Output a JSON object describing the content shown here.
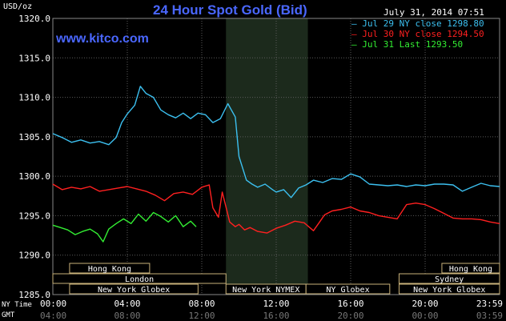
{
  "header": {
    "y_unit": "USD/oz",
    "title": "24 Hour Spot Gold (Bid)",
    "date": "July 31, 2014 07:51",
    "site": "www.kitco.com"
  },
  "timezones": {
    "ny_label": "NY Time",
    "gmt_label": "GMT"
  },
  "colors": {
    "jul29": "#3cc0f0",
    "jul30": "#ff2020",
    "jul31": "#33ee33",
    "grid": "#5a5a5a",
    "session_bg": "#1c2a1c",
    "label_border": "#c9b27a"
  },
  "chart_data": {
    "type": "line",
    "title": "24 Hour Spot Gold (Bid)",
    "ylabel": "USD/oz",
    "ylim": [
      1285.0,
      1320.0
    ],
    "yticks": [
      "1285.0",
      "1290.0",
      "1295.0",
      "1300.0",
      "1305.0",
      "1310.0",
      "1315.0",
      "1320.0"
    ],
    "xlim_hours": [
      0,
      24
    ],
    "xticks_ny": [
      "00:00",
      "04:00",
      "08:00",
      "12:00",
      "16:00",
      "20:00",
      "23:59"
    ],
    "xticks_gmt": [
      "04:00",
      "08:00",
      "12:00",
      "16:00",
      "20:00",
      "00:00",
      "03:59"
    ],
    "highlight_hours": [
      9.3,
      13.7
    ],
    "legend_position": "top-right",
    "legend": [
      "Jul 29 NY close 1298.80",
      "Jul 30 NY close 1294.50",
      "Jul 31 Last 1293.50"
    ],
    "series": [
      {
        "name": "Jul 29 NY close 1298.80",
        "color": "#3cc0f0",
        "x": [
          0,
          0.5,
          1,
          1.5,
          2,
          2.5,
          3,
          3.4,
          3.7,
          4,
          4.4,
          4.7,
          5,
          5.4,
          5.8,
          6.2,
          6.6,
          7,
          7.4,
          7.8,
          8.2,
          8.6,
          9,
          9.4,
          9.8,
          10,
          10.4,
          10.7,
          11,
          11.4,
          11.8,
          12,
          12.4,
          12.8,
          13.2,
          13.6,
          14,
          14.5,
          15,
          15.5,
          16,
          16.5,
          17,
          17.5,
          18,
          18.5,
          19,
          19.5,
          20,
          20.5,
          21,
          21.5,
          22,
          22.5,
          23,
          23.5,
          24
        ],
        "y": [
          1305.4,
          1304.9,
          1304.3,
          1304.6,
          1304.2,
          1304.4,
          1304.0,
          1304.9,
          1306.8,
          1307.9,
          1309.0,
          1311.4,
          1310.5,
          1310.0,
          1308.4,
          1307.8,
          1307.4,
          1308.0,
          1307.3,
          1308.0,
          1307.8,
          1306.8,
          1307.3,
          1309.2,
          1307.5,
          1302.5,
          1299.5,
          1299.0,
          1298.6,
          1299.0,
          1298.3,
          1298.0,
          1298.3,
          1297.3,
          1298.5,
          1298.9,
          1299.5,
          1299.2,
          1299.7,
          1299.6,
          1300.3,
          1299.9,
          1299.0,
          1298.9,
          1298.8,
          1298.9,
          1298.7,
          1298.9,
          1298.8,
          1299.0,
          1299.0,
          1298.9,
          1298.1,
          1298.6,
          1299.1,
          1298.8,
          1298.7
        ]
      },
      {
        "name": "Jul 30 NY close 1294.50",
        "color": "#ff2020",
        "x": [
          0,
          0.5,
          1,
          1.5,
          2,
          2.5,
          3,
          3.5,
          4,
          4.5,
          5,
          5.5,
          6,
          6.5,
          7,
          7.5,
          8,
          8.4,
          8.6,
          8.9,
          9.1,
          9.5,
          9.8,
          10,
          10.3,
          10.6,
          11,
          11.5,
          12,
          12.5,
          13,
          13.5,
          14,
          14.3,
          14.6,
          15,
          15.5,
          16,
          16.5,
          17,
          17.5,
          18,
          18.5,
          19,
          19.5,
          20,
          20.5,
          21,
          21.5,
          22,
          22.5,
          23,
          23.5,
          24
        ],
        "y": [
          1299.0,
          1298.3,
          1298.6,
          1298.4,
          1298.7,
          1298.1,
          1298.3,
          1298.5,
          1298.7,
          1298.4,
          1298.1,
          1297.6,
          1296.9,
          1297.8,
          1298.0,
          1297.7,
          1298.6,
          1298.9,
          1296.0,
          1294.8,
          1298.0,
          1294.2,
          1293.6,
          1293.9,
          1293.2,
          1293.5,
          1293.0,
          1292.8,
          1293.4,
          1293.8,
          1294.3,
          1294.1,
          1293.1,
          1294.1,
          1295.1,
          1295.6,
          1295.8,
          1296.1,
          1295.6,
          1295.4,
          1295.0,
          1294.8,
          1294.6,
          1296.4,
          1296.6,
          1296.4,
          1295.9,
          1295.3,
          1294.7,
          1294.6,
          1294.6,
          1294.5,
          1294.2,
          1294.0
        ]
      },
      {
        "name": "Jul 31 Last 1293.50",
        "color": "#33ee33",
        "x": [
          0,
          0.4,
          0.8,
          1.2,
          1.6,
          2,
          2.4,
          2.7,
          3,
          3.4,
          3.8,
          4.2,
          4.6,
          5,
          5.4,
          5.8,
          6.2,
          6.6,
          7,
          7.4,
          7.7
        ],
        "y": [
          1293.8,
          1293.5,
          1293.2,
          1292.6,
          1293.0,
          1293.3,
          1292.7,
          1291.7,
          1293.3,
          1294.0,
          1294.6,
          1294.0,
          1295.2,
          1294.3,
          1295.4,
          1294.9,
          1294.2,
          1295.0,
          1293.6,
          1294.3,
          1293.6
        ]
      }
    ],
    "sessions": [
      {
        "label": "Hong Kong",
        "start": 0.9,
        "end": 5.2,
        "row": 0
      },
      {
        "label": "London",
        "start": 0,
        "end": 9.3,
        "row": 1
      },
      {
        "label": "New York Globex",
        "start": 0.9,
        "end": 7.8,
        "row": 2
      },
      {
        "label": "New York NYMEX",
        "start": 9.3,
        "end": 13.6,
        "row": 2
      },
      {
        "label": "NY Globex",
        "start": 13.6,
        "end": 18.1,
        "row": 2
      },
      {
        "label": "Hong Kong",
        "start": 20.9,
        "end": 24,
        "row": 0
      },
      {
        "label": "Sydney",
        "start": 18.6,
        "end": 24,
        "row": 1
      },
      {
        "label": "New York Globex",
        "start": 18.6,
        "end": 24,
        "row": 2
      }
    ]
  }
}
